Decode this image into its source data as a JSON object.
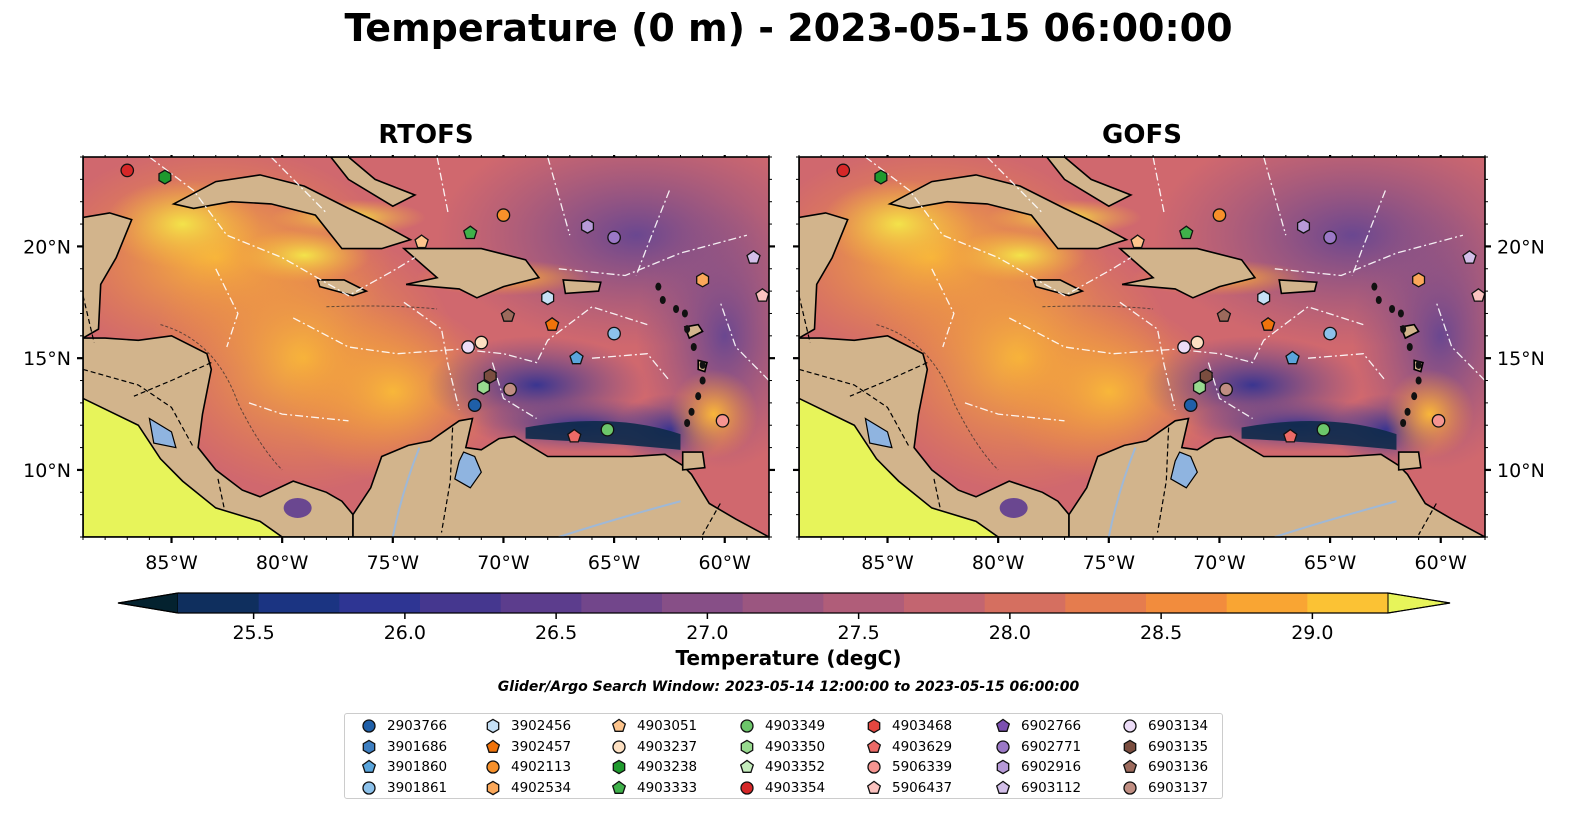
{
  "title": "Temperature (0 m) - 2023-05-15 06:00:00",
  "panels": [
    {
      "title": "RTOFS"
    },
    {
      "title": "GOFS"
    }
  ],
  "axes": {
    "lon_ticks": [
      "85°W",
      "80°W",
      "75°W",
      "70°W",
      "65°W",
      "60°W"
    ],
    "lat_ticks": [
      "20°N",
      "15°N",
      "10°N"
    ]
  },
  "colorbar": {
    "label": "Temperature (degC)",
    "ticks": [
      "25.5",
      "26.0",
      "26.5",
      "27.0",
      "27.5",
      "28.0",
      "28.5",
      "29.0"
    ],
    "range": [
      25.25,
      29.25
    ],
    "colors": [
      "#062a3e",
      "#0f2f5e",
      "#1b3482",
      "#2e3593",
      "#45378f",
      "#5c3d8d",
      "#72468b",
      "#874f87",
      "#9b5680",
      "#b05d79",
      "#c36570",
      "#d56f60",
      "#e57c4e",
      "#f28c3d",
      "#f9a533",
      "#fbc234",
      "#f6de3f"
    ],
    "over_color": "#e7f45a",
    "under_color": "#04222f"
  },
  "search_window": "Glider/Argo Search Window: 2023-05-14 12:00:00 to 2023-05-15 06:00:00",
  "legend": [
    [
      {
        "label": "2903766",
        "marker": "circle",
        "color": "#1f5fa8"
      },
      {
        "label": "3901686",
        "marker": "hexagon",
        "color": "#3e7fc1"
      },
      {
        "label": "3901860",
        "marker": "pentagon",
        "color": "#5aa5dc"
      },
      {
        "label": "3901861",
        "marker": "circle",
        "color": "#8cc1ea"
      }
    ],
    [
      {
        "label": "3902456",
        "marker": "hexagon",
        "color": "#c6e0f5"
      },
      {
        "label": "3902457",
        "marker": "pentagon",
        "color": "#f0730b"
      },
      {
        "label": "4902113",
        "marker": "circle",
        "color": "#f7902a"
      },
      {
        "label": "4902534",
        "marker": "hexagon",
        "color": "#fba85a"
      }
    ],
    [
      {
        "label": "4903051",
        "marker": "pentagon",
        "color": "#fdc48c"
      },
      {
        "label": "4903237",
        "marker": "circle",
        "color": "#fde0c2"
      },
      {
        "label": "4903238",
        "marker": "hexagon",
        "color": "#1f9a2e"
      },
      {
        "label": "4903333",
        "marker": "pentagon",
        "color": "#3fb14a"
      }
    ],
    [
      {
        "label": "4903349",
        "marker": "circle",
        "color": "#6cc66a"
      },
      {
        "label": "4903350",
        "marker": "hexagon",
        "color": "#98da8f"
      },
      {
        "label": "4903352",
        "marker": "pentagon",
        "color": "#c5edbd"
      },
      {
        "label": "4903354",
        "marker": "circle",
        "color": "#d62728"
      }
    ],
    [
      {
        "label": "4903468",
        "marker": "hexagon",
        "color": "#e2463f"
      },
      {
        "label": "4903629",
        "marker": "pentagon",
        "color": "#ec6a66"
      },
      {
        "label": "5906339",
        "marker": "circle",
        "color": "#f59591"
      },
      {
        "label": "5906437",
        "marker": "pentagon",
        "color": "#fbc2bf"
      }
    ],
    [
      {
        "label": "6902766",
        "marker": "pentagon",
        "color": "#7b4fb0"
      },
      {
        "label": "6902771",
        "marker": "circle",
        "color": "#9b78c6"
      },
      {
        "label": "6902916",
        "marker": "hexagon",
        "color": "#b79ad8"
      },
      {
        "label": "6903112",
        "marker": "pentagon",
        "color": "#d3bfe9"
      }
    ],
    [
      {
        "label": "6903134",
        "marker": "circle",
        "color": "#ecdcf7"
      },
      {
        "label": "6903135",
        "marker": "hexagon",
        "color": "#7a4d3f"
      },
      {
        "label": "6903136",
        "marker": "pentagon",
        "color": "#9c6a5c"
      },
      {
        "label": "6903137",
        "marker": "circle",
        "color": "#c08e82"
      }
    ]
  ],
  "floats": [
    {
      "id": "4903354",
      "lon": -87.0,
      "lat": 23.4,
      "marker": "circle",
      "color": "#d62728"
    },
    {
      "id": "4903238",
      "lon": -85.3,
      "lat": 23.1,
      "marker": "hexagon",
      "color": "#1f9a2e"
    },
    {
      "id": "4903051",
      "lon": -73.7,
      "lat": 20.2,
      "marker": "pentagon",
      "color": "#fdc48c"
    },
    {
      "id": "4903333",
      "lon": -71.5,
      "lat": 20.6,
      "marker": "pentagon",
      "color": "#3fb14a"
    },
    {
      "id": "4902113",
      "lon": -70.0,
      "lat": 21.4,
      "marker": "circle",
      "color": "#f7902a"
    },
    {
      "id": "6902916",
      "lon": -66.2,
      "lat": 20.9,
      "marker": "hexagon",
      "color": "#b79ad8"
    },
    {
      "id": "6902771",
      "lon": -65.0,
      "lat": 20.4,
      "marker": "circle",
      "color": "#9b78c6"
    },
    {
      "id": "6903112",
      "lon": -58.7,
      "lat": 19.5,
      "marker": "pentagon",
      "color": "#d3bfe9"
    },
    {
      "id": "4902534",
      "lon": -61.0,
      "lat": 18.5,
      "marker": "hexagon",
      "color": "#fba85a"
    },
    {
      "id": "3902456",
      "lon": -68.0,
      "lat": 17.7,
      "marker": "hexagon",
      "color": "#c6e0f5"
    },
    {
      "id": "6903136",
      "lon": -69.8,
      "lat": 16.9,
      "marker": "pentagon",
      "color": "#9c6a5c"
    },
    {
      "id": "3902457",
      "lon": -67.8,
      "lat": 16.5,
      "marker": "pentagon",
      "color": "#f0730b"
    },
    {
      "id": "3901861",
      "lon": -65.0,
      "lat": 16.1,
      "marker": "circle",
      "color": "#8cc1ea"
    },
    {
      "id": "6903134",
      "lon": -71.6,
      "lat": 15.5,
      "marker": "circle",
      "color": "#ecdcf7"
    },
    {
      "id": "4903237",
      "lon": -71.0,
      "lat": 15.7,
      "marker": "circle",
      "color": "#fde0c2"
    },
    {
      "id": "3901860",
      "lon": -66.7,
      "lat": 15.0,
      "marker": "pentagon",
      "color": "#5aa5dc"
    },
    {
      "id": "6903135",
      "lon": -70.6,
      "lat": 14.2,
      "marker": "hexagon",
      "color": "#7a4d3f"
    },
    {
      "id": "4903350",
      "lon": -70.9,
      "lat": 13.7,
      "marker": "hexagon",
      "color": "#98da8f"
    },
    {
      "id": "6903137",
      "lon": -69.7,
      "lat": 13.6,
      "marker": "circle",
      "color": "#c08e82"
    },
    {
      "id": "2903766",
      "lon": -71.3,
      "lat": 12.9,
      "marker": "circle",
      "color": "#1f5fa8"
    },
    {
      "id": "4903629",
      "lon": -66.8,
      "lat": 11.5,
      "marker": "pentagon",
      "color": "#ec6a66"
    },
    {
      "id": "4903349",
      "lon": -65.3,
      "lat": 11.8,
      "marker": "circle",
      "color": "#6cc66a"
    },
    {
      "id": "5906339",
      "lon": -60.1,
      "lat": 12.2,
      "marker": "circle",
      "color": "#f59591"
    },
    {
      "id": "5906437",
      "lon": -58.3,
      "lat": 17.8,
      "marker": "pentagon",
      "color": "#fbc2bf"
    }
  ]
}
